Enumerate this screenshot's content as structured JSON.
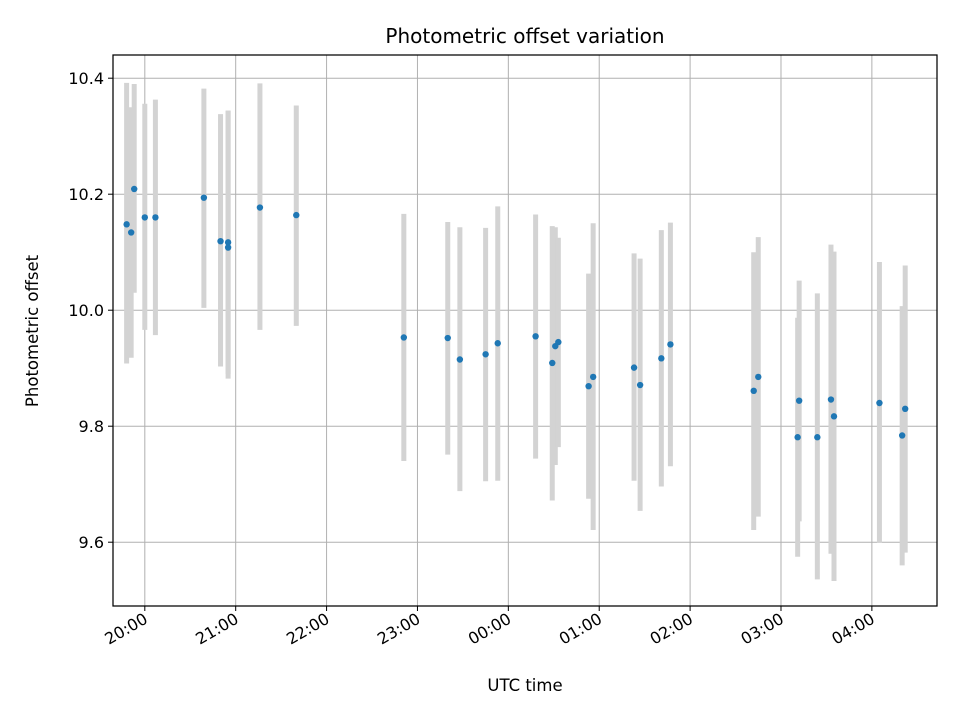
{
  "chart_data": {
    "type": "scatter",
    "title": "Photometric offset variation",
    "xlabel": "UTC time",
    "ylabel": "Photometric offset",
    "x_axis_kind": "time",
    "x_tick_labels": [
      "20:00",
      "21:00",
      "22:00",
      "23:00",
      "00:00",
      "01:00",
      "02:00",
      "03:00",
      "04:00"
    ],
    "y_tick_labels": [
      "9.6",
      "9.8",
      "10.0",
      "10.2",
      "10.4"
    ],
    "ylim": [
      9.49,
      10.44
    ],
    "xlim": [
      "19:39",
      "04:43"
    ],
    "grid": true,
    "marker_color": "#1f77b4",
    "errorbar_color": "#d3d3d3",
    "points": [
      {
        "t": "19:48",
        "y": 10.148,
        "err_lo": 9.908,
        "err_hi": 10.392
      },
      {
        "t": "19:51",
        "y": 10.134,
        "err_lo": 9.918,
        "err_hi": 10.35
      },
      {
        "t": "19:53",
        "y": 10.209,
        "err_lo": 10.03,
        "err_hi": 10.39
      },
      {
        "t": "20:00",
        "y": 10.16,
        "err_lo": 9.966,
        "err_hi": 10.356
      },
      {
        "t": "20:07",
        "y": 10.16,
        "err_lo": 9.957,
        "err_hi": 10.363
      },
      {
        "t": "20:39",
        "y": 10.194,
        "err_lo": 10.004,
        "err_hi": 10.382
      },
      {
        "t": "20:50",
        "y": 10.119,
        "err_lo": 9.903,
        "err_hi": 10.338
      },
      {
        "t": "20:55",
        "y": 10.117,
        "err_lo": 9.89,
        "err_hi": 10.344
      },
      {
        "t": "20:55",
        "y": 10.108,
        "err_lo": 9.882,
        "err_hi": 10.344
      },
      {
        "t": "21:16",
        "y": 10.177,
        "err_lo": 9.966,
        "err_hi": 10.391
      },
      {
        "t": "21:40",
        "y": 10.164,
        "err_lo": 9.973,
        "err_hi": 10.353
      },
      {
        "t": "22:51",
        "y": 9.953,
        "err_lo": 9.74,
        "err_hi": 10.166
      },
      {
        "t": "23:20",
        "y": 9.952,
        "err_lo": 9.751,
        "err_hi": 10.152
      },
      {
        "t": "23:28",
        "y": 9.915,
        "err_lo": 9.688,
        "err_hi": 10.143
      },
      {
        "t": "23:45",
        "y": 9.924,
        "err_lo": 9.705,
        "err_hi": 10.142
      },
      {
        "t": "23:53",
        "y": 9.943,
        "err_lo": 9.706,
        "err_hi": 10.179
      },
      {
        "t": "00:18",
        "y": 9.955,
        "err_lo": 9.744,
        "err_hi": 10.165
      },
      {
        "t": "00:29",
        "y": 9.909,
        "err_lo": 9.672,
        "err_hi": 10.145
      },
      {
        "t": "00:31",
        "y": 9.938,
        "err_lo": 9.733,
        "err_hi": 10.143
      },
      {
        "t": "00:33",
        "y": 9.945,
        "err_lo": 9.764,
        "err_hi": 10.125
      },
      {
        "t": "00:53",
        "y": 9.869,
        "err_lo": 9.675,
        "err_hi": 10.063
      },
      {
        "t": "00:56",
        "y": 9.885,
        "err_lo": 9.621,
        "err_hi": 10.15
      },
      {
        "t": "01:23",
        "y": 9.901,
        "err_lo": 9.706,
        "err_hi": 10.098
      },
      {
        "t": "01:27",
        "y": 9.871,
        "err_lo": 9.654,
        "err_hi": 10.089
      },
      {
        "t": "01:41",
        "y": 9.917,
        "err_lo": 9.696,
        "err_hi": 10.138
      },
      {
        "t": "01:47",
        "y": 9.941,
        "err_lo": 9.731,
        "err_hi": 10.151
      },
      {
        "t": "02:42",
        "y": 9.861,
        "err_lo": 9.621,
        "err_hi": 10.1
      },
      {
        "t": "02:45",
        "y": 9.885,
        "err_lo": 9.644,
        "err_hi": 10.126
      },
      {
        "t": "03:11",
        "y": 9.781,
        "err_lo": 9.575,
        "err_hi": 9.987
      },
      {
        "t": "03:12",
        "y": 9.844,
        "err_lo": 9.636,
        "err_hi": 10.051
      },
      {
        "t": "03:24",
        "y": 9.781,
        "err_lo": 9.536,
        "err_hi": 10.029
      },
      {
        "t": "03:33",
        "y": 9.846,
        "err_lo": 9.58,
        "err_hi": 10.113
      },
      {
        "t": "03:35",
        "y": 9.817,
        "err_lo": 9.533,
        "err_hi": 10.101
      },
      {
        "t": "04:05",
        "y": 9.84,
        "err_lo": 9.599,
        "err_hi": 10.083
      },
      {
        "t": "04:20",
        "y": 9.784,
        "err_lo": 9.56,
        "err_hi": 10.007
      },
      {
        "t": "04:22",
        "y": 9.83,
        "err_lo": 9.582,
        "err_hi": 10.077
      }
    ]
  }
}
